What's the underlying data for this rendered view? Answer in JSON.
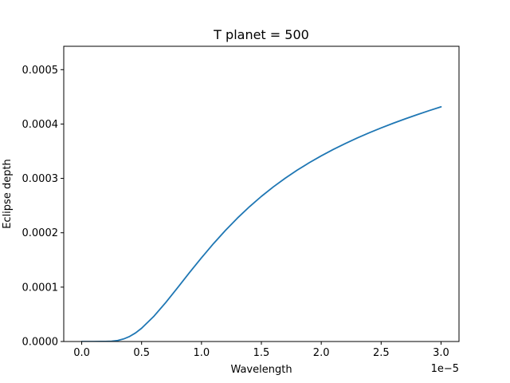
{
  "chart_data": {
    "type": "line",
    "title": "T planet = 500",
    "xlabel": "Wavelength",
    "ylabel": "Eclipse depth",
    "x_offset_label": "1e−5",
    "x_scale": 1e-05,
    "xlim": [
      -1.5e-06,
      3.15e-05
    ],
    "ylim": [
      0,
      0.000543
    ],
    "grid": false,
    "x_ticks": [
      0,
      5e-06,
      1e-05,
      1.5e-05,
      2e-05,
      2.5e-05,
      3e-05
    ],
    "x_tick_labels": [
      "0.0",
      "0.5",
      "1.0",
      "1.5",
      "2.0",
      "2.5",
      "3.0"
    ],
    "y_ticks": [
      0,
      0.0001,
      0.0002,
      0.0003,
      0.0004,
      0.0005
    ],
    "y_tick_labels": [
      "0.0000",
      "0.0001",
      "0.0002",
      "0.0003",
      "0.0004",
      "0.0005"
    ],
    "series": [
      {
        "color": "#1f77b4",
        "x": [
          0,
          1e-06,
          2e-06,
          2.5e-06,
          3e-06,
          3.5e-06,
          4e-06,
          4.5e-06,
          5e-06,
          6e-06,
          7e-06,
          8e-06,
          9e-06,
          1e-05,
          1.1e-05,
          1.2e-05,
          1.3e-05,
          1.4e-05,
          1.5e-05,
          1.6e-05,
          1.7e-05,
          1.8e-05,
          1.9e-05,
          2e-05,
          2.1e-05,
          2.2e-05,
          2.3e-05,
          2.4e-05,
          2.5e-05,
          2.6e-05,
          2.7e-05,
          2.8e-05,
          2.9e-05,
          3e-05
        ],
        "y": [
          0,
          0,
          1e-07,
          6e-07,
          1.9e-06,
          4.7e-06,
          9.3e-06,
          1.59e-05,
          2.44e-05,
          4.58e-05,
          7.13e-05,
          9.88e-05,
          0.0001268,
          0.000154,
          0.00018,
          0.0002044,
          0.000227,
          0.0002478,
          0.0002669,
          0.0002844,
          0.0003005,
          0.0003153,
          0.0003289,
          0.0003415,
          0.0003532,
          0.0003641,
          0.0003743,
          0.0003839,
          0.0003929,
          0.0004014,
          0.0004095,
          0.0004172,
          0.0004246,
          0.0004316
        ]
      }
    ]
  }
}
